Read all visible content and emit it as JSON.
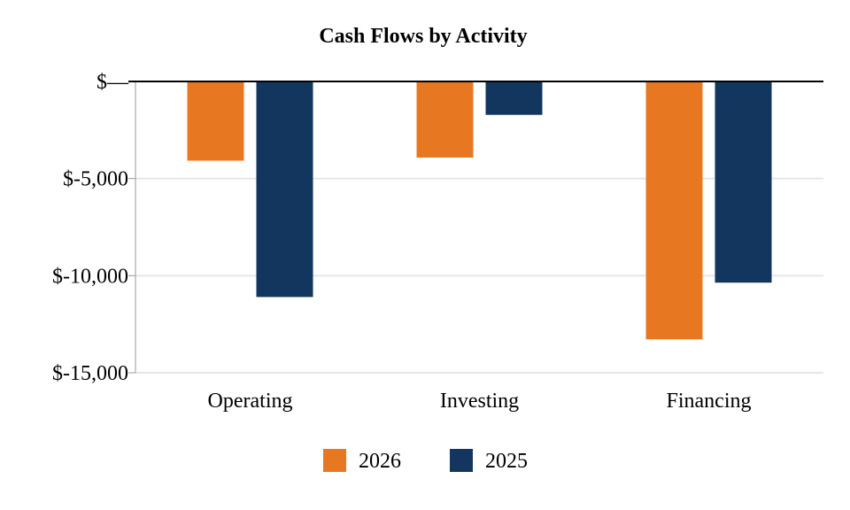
{
  "chart_data": {
    "type": "bar",
    "title": "Cash Flows by Activity",
    "categories": [
      "Operating",
      "Investing",
      "Financing"
    ],
    "series": [
      {
        "name": "2026",
        "color": "#e87722",
        "values": [
          -4080,
          -3920,
          -13280
        ]
      },
      {
        "name": "2025",
        "color": "#13365f",
        "values": [
          -11100,
          -1720,
          -10360
        ]
      }
    ],
    "ylim": [
      -15000,
      0
    ],
    "yticks": [
      0,
      -5000,
      -10000,
      -15000
    ],
    "ytick_labels": [
      "$—",
      "$-5,000",
      "$-10,000",
      "$-15,000"
    ],
    "grid": true,
    "legend_position": "bottom-center",
    "xlabel": "",
    "ylabel": ""
  }
}
